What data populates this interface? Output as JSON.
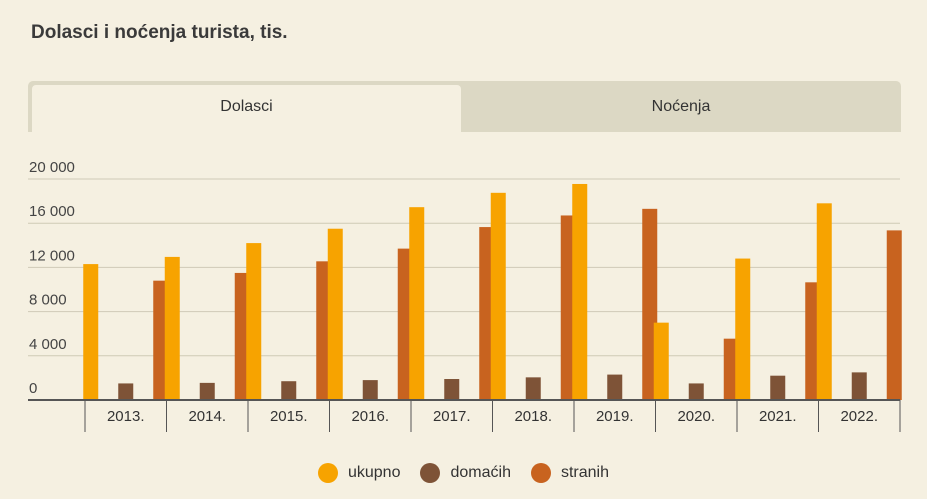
{
  "title": "Dolasci i noćenja turista, tis.",
  "tabs": [
    {
      "label": "Dolasci",
      "active": true
    },
    {
      "label": "Noćenja",
      "active": false
    }
  ],
  "colors": {
    "ukupno": "#f7a300",
    "domacih": "#7e5337",
    "stranih": "#c8631f",
    "grid": "#cfcab6",
    "axis": "#555555"
  },
  "chart_data": {
    "type": "bar",
    "categories": [
      "2013.",
      "2014.",
      "2015.",
      "2016.",
      "2017.",
      "2018.",
      "2019.",
      "2020.",
      "2021.",
      "2022."
    ],
    "ylim": [
      0,
      20000
    ],
    "yticks": [
      0,
      4000,
      8000,
      12000,
      16000,
      20000
    ],
    "ytick_labels": [
      "0",
      "4 000",
      "8 000",
      "12 000",
      "16 000",
      "20 000"
    ],
    "grid": true,
    "legend_position": "bottom",
    "series": [
      {
        "name": "ukupno",
        "values": [
          12300,
          12950,
          14200,
          15500,
          17450,
          18750,
          19550,
          7000,
          12800,
          17800
        ]
      },
      {
        "name": "domaćih",
        "values": [
          1500,
          1550,
          1700,
          1800,
          1900,
          2050,
          2300,
          1500,
          2200,
          2500
        ]
      },
      {
        "name": "stranih",
        "values": [
          10800,
          11500,
          12550,
          13700,
          15650,
          16700,
          17300,
          5550,
          10650,
          15350
        ]
      }
    ]
  }
}
